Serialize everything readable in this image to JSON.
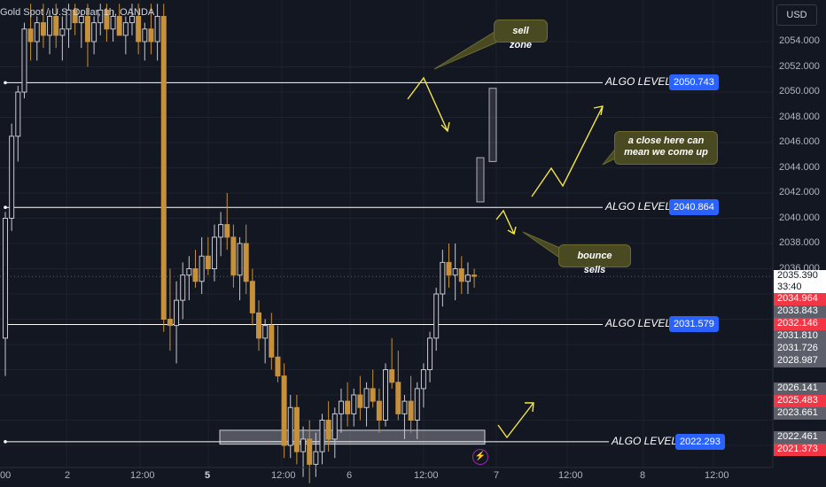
{
  "header": {
    "symbol_title": "Gold Spot / U.S. Dollar, 1h, OANDA",
    "currency_button": "USD"
  },
  "colors": {
    "background": "#131722",
    "grid": "#1e222d",
    "candle_up": "#c8c8d0",
    "candle_down": "#c6913a",
    "level_line": "#ffffff",
    "arrow": "#f5e642",
    "algo_tag": "#2962ff",
    "red_tag": "#f23645"
  },
  "price_axis": {
    "ticks": [
      "2054.000",
      "2052.000",
      "2050.000",
      "2048.000",
      "2046.000",
      "2044.000",
      "2042.000",
      "2040.000",
      "2038.000",
      "2036.000",
      "2026.000"
    ]
  },
  "price_tags": [
    {
      "value": "2035.390",
      "sub": "33:40",
      "style": "white"
    },
    {
      "value": "2034.964",
      "style": "red"
    },
    {
      "value": "2033.843",
      "style": "gray"
    },
    {
      "value": "2032.146",
      "style": "red"
    },
    {
      "value": "2031.810",
      "style": "gray"
    },
    {
      "value": "2031.726",
      "style": "gray"
    },
    {
      "value": "2028.987",
      "style": "gray"
    },
    {
      "value": "2026.141",
      "style": "gray"
    },
    {
      "value": "2025.483",
      "style": "red"
    },
    {
      "value": "2023.661",
      "style": "gray"
    },
    {
      "value": "2022.461",
      "style": "gray"
    },
    {
      "value": "2021.373",
      "style": "red"
    }
  ],
  "time_axis": {
    "labels": [
      {
        "text": "00",
        "bold": false
      },
      {
        "text": "2",
        "bold": false
      },
      {
        "text": "12:00",
        "bold": false
      },
      {
        "text": "5",
        "bold": true
      },
      {
        "text": "12:00",
        "bold": false
      },
      {
        "text": "6",
        "bold": false
      },
      {
        "text": "12:00",
        "bold": false
      },
      {
        "text": "7",
        "bold": false
      },
      {
        "text": "12:00",
        "bold": false
      },
      {
        "text": "8",
        "bold": false
      },
      {
        "text": "12:00",
        "bold": false
      }
    ]
  },
  "algo_levels": [
    {
      "label": "ALGO LEVEL",
      "price": "2050.743",
      "value": 2050.743
    },
    {
      "label": "ALGO LEVEL",
      "price": "2040.864",
      "value": 2040.864
    },
    {
      "label": "ALGO LEVEL",
      "price": "2031.579",
      "value": 2031.579
    },
    {
      "label": "ALGO LEVEL",
      "price": "2022.293",
      "value": 2022.293
    }
  ],
  "notes": {
    "sell_zone": "sell zone",
    "close_here_line1": "a close here can",
    "close_here_line2": "mean we come up",
    "bounce_sells": "bounce sells"
  },
  "chart_data": {
    "type": "candlestick",
    "title": "Gold Spot / U.S. Dollar, 1h, OANDA",
    "ylim": [
      2019.5,
      2055.5
    ],
    "current_price": 2035.39,
    "candles": [
      {
        "o": 2030.5,
        "h": 2040.5,
        "l": 2027.5,
        "c": 2040.0
      },
      {
        "o": 2040.0,
        "h": 2047.5,
        "l": 2039.0,
        "c": 2046.5
      },
      {
        "o": 2046.5,
        "h": 2050.5,
        "l": 2044.5,
        "c": 2050.0
      },
      {
        "o": 2050.0,
        "h": 2055.5,
        "l": 2049.5,
        "c": 2055.0
      },
      {
        "o": 2055.0,
        "h": 2057.0,
        "l": 2052.5,
        "c": 2054.0
      },
      {
        "o": 2054.0,
        "h": 2056.0,
        "l": 2052.5,
        "c": 2055.5
      },
      {
        "o": 2055.5,
        "h": 2057.0,
        "l": 2053.5,
        "c": 2054.5
      },
      {
        "o": 2054.5,
        "h": 2056.5,
        "l": 2053.0,
        "c": 2056.0
      },
      {
        "o": 2056.0,
        "h": 2057.0,
        "l": 2053.5,
        "c": 2054.5
      },
      {
        "o": 2054.5,
        "h": 2056.0,
        "l": 2052.5,
        "c": 2055.0
      },
      {
        "o": 2055.0,
        "h": 2057.0,
        "l": 2053.5,
        "c": 2056.5
      },
      {
        "o": 2056.5,
        "h": 2057.0,
        "l": 2054.5,
        "c": 2055.5
      },
      {
        "o": 2055.5,
        "h": 2056.5,
        "l": 2053.5,
        "c": 2056.0
      },
      {
        "o": 2056.0,
        "h": 2057.0,
        "l": 2052.0,
        "c": 2054.0
      },
      {
        "o": 2054.0,
        "h": 2056.0,
        "l": 2053.0,
        "c": 2055.5
      },
      {
        "o": 2055.5,
        "h": 2057.0,
        "l": 2054.5,
        "c": 2056.5
      },
      {
        "o": 2056.5,
        "h": 2057.0,
        "l": 2054.0,
        "c": 2055.0
      },
      {
        "o": 2055.0,
        "h": 2056.5,
        "l": 2054.0,
        "c": 2056.0
      },
      {
        "o": 2056.0,
        "h": 2057.0,
        "l": 2054.5,
        "c": 2054.5
      },
      {
        "o": 2054.5,
        "h": 2056.0,
        "l": 2053.0,
        "c": 2055.5
      },
      {
        "o": 2055.5,
        "h": 2057.0,
        "l": 2054.5,
        "c": 2056.0
      },
      {
        "o": 2056.0,
        "h": 2057.0,
        "l": 2053.0,
        "c": 2054.0
      },
      {
        "o": 2054.0,
        "h": 2055.5,
        "l": 2052.5,
        "c": 2055.0
      },
      {
        "o": 2055.0,
        "h": 2057.0,
        "l": 2053.0,
        "c": 2054.0
      },
      {
        "o": 2054.0,
        "h": 2057.0,
        "l": 2052.5,
        "c": 2056.0
      },
      {
        "o": 2056.0,
        "h": 2057.0,
        "l": 2031.0,
        "c": 2032.0
      },
      {
        "o": 2032.0,
        "h": 2036.0,
        "l": 2029.5,
        "c": 2031.5
      },
      {
        "o": 2031.5,
        "h": 2035.0,
        "l": 2028.5,
        "c": 2033.5
      },
      {
        "o": 2033.5,
        "h": 2036.5,
        "l": 2032.0,
        "c": 2035.5
      },
      {
        "o": 2035.5,
        "h": 2037.0,
        "l": 2033.5,
        "c": 2036.0
      },
      {
        "o": 2036.0,
        "h": 2037.5,
        "l": 2034.5,
        "c": 2035.0
      },
      {
        "o": 2035.0,
        "h": 2038.5,
        "l": 2034.0,
        "c": 2037.0
      },
      {
        "o": 2037.0,
        "h": 2038.5,
        "l": 2035.5,
        "c": 2036.0
      },
      {
        "o": 2036.0,
        "h": 2039.5,
        "l": 2035.0,
        "c": 2038.5
      },
      {
        "o": 2038.5,
        "h": 2040.5,
        "l": 2037.0,
        "c": 2039.5
      },
      {
        "o": 2039.5,
        "h": 2042.0,
        "l": 2037.5,
        "c": 2038.5
      },
      {
        "o": 2038.5,
        "h": 2039.5,
        "l": 2034.5,
        "c": 2035.5
      },
      {
        "o": 2035.5,
        "h": 2038.5,
        "l": 2033.5,
        "c": 2038.0
      },
      {
        "o": 2038.0,
        "h": 2039.5,
        "l": 2034.0,
        "c": 2035.0
      },
      {
        "o": 2035.0,
        "h": 2036.0,
        "l": 2031.5,
        "c": 2032.5
      },
      {
        "o": 2032.5,
        "h": 2033.5,
        "l": 2029.5,
        "c": 2030.5
      },
      {
        "o": 2030.5,
        "h": 2032.0,
        "l": 2028.5,
        "c": 2031.5
      },
      {
        "o": 2031.5,
        "h": 2032.5,
        "l": 2028.0,
        "c": 2029.0
      },
      {
        "o": 2029.0,
        "h": 2031.5,
        "l": 2027.0,
        "c": 2027.5
      },
      {
        "o": 2027.5,
        "h": 2028.5,
        "l": 2021.0,
        "c": 2022.0
      },
      {
        "o": 2022.0,
        "h": 2026.0,
        "l": 2021.0,
        "c": 2025.0
      },
      {
        "o": 2025.0,
        "h": 2026.0,
        "l": 2020.5,
        "c": 2021.5
      },
      {
        "o": 2021.5,
        "h": 2023.5,
        "l": 2019.5,
        "c": 2022.5
      },
      {
        "o": 2022.5,
        "h": 2024.0,
        "l": 2019.0,
        "c": 2020.5
      },
      {
        "o": 2020.5,
        "h": 2023.0,
        "l": 2019.5,
        "c": 2021.5
      },
      {
        "o": 2021.5,
        "h": 2024.5,
        "l": 2020.5,
        "c": 2024.0
      },
      {
        "o": 2024.0,
        "h": 2025.5,
        "l": 2021.5,
        "c": 2022.5
      },
      {
        "o": 2022.5,
        "h": 2025.0,
        "l": 2021.0,
        "c": 2024.5
      },
      {
        "o": 2024.5,
        "h": 2026.5,
        "l": 2023.0,
        "c": 2025.5
      },
      {
        "o": 2025.5,
        "h": 2027.0,
        "l": 2023.5,
        "c": 2024.5
      },
      {
        "o": 2024.5,
        "h": 2026.5,
        "l": 2023.5,
        "c": 2026.0
      },
      {
        "o": 2026.0,
        "h": 2027.5,
        "l": 2024.0,
        "c": 2025.0
      },
      {
        "o": 2025.0,
        "h": 2027.0,
        "l": 2023.5,
        "c": 2026.5
      },
      {
        "o": 2026.5,
        "h": 2028.0,
        "l": 2025.0,
        "c": 2025.5
      },
      {
        "o": 2025.5,
        "h": 2026.5,
        "l": 2023.0,
        "c": 2024.0
      },
      {
        "o": 2024.0,
        "h": 2028.5,
        "l": 2023.5,
        "c": 2028.0
      },
      {
        "o": 2028.0,
        "h": 2030.5,
        "l": 2026.5,
        "c": 2027.0
      },
      {
        "o": 2027.0,
        "h": 2029.5,
        "l": 2024.0,
        "c": 2024.5
      },
      {
        "o": 2024.5,
        "h": 2026.0,
        "l": 2022.5,
        "c": 2025.5
      },
      {
        "o": 2025.5,
        "h": 2027.5,
        "l": 2023.0,
        "c": 2024.0
      },
      {
        "o": 2024.0,
        "h": 2027.0,
        "l": 2022.5,
        "c": 2026.5
      },
      {
        "o": 2026.5,
        "h": 2028.5,
        "l": 2025.0,
        "c": 2028.0
      },
      {
        "o": 2028.0,
        "h": 2031.0,
        "l": 2027.0,
        "c": 2030.5
      },
      {
        "o": 2030.5,
        "h": 2034.5,
        "l": 2029.5,
        "c": 2034.0
      },
      {
        "o": 2034.0,
        "h": 2037.5,
        "l": 2033.0,
        "c": 2036.5
      },
      {
        "o": 2036.5,
        "h": 2038.0,
        "l": 2034.5,
        "c": 2035.5
      },
      {
        "o": 2035.5,
        "h": 2038.0,
        "l": 2033.5,
        "c": 2036.0
      },
      {
        "o": 2036.0,
        "h": 2037.0,
        "l": 2034.0,
        "c": 2035.0
      },
      {
        "o": 2035.0,
        "h": 2036.5,
        "l": 2034.0,
        "c": 2035.5
      },
      {
        "o": 2035.5,
        "h": 2036.0,
        "l": 2034.5,
        "c": 2035.4
      }
    ]
  }
}
